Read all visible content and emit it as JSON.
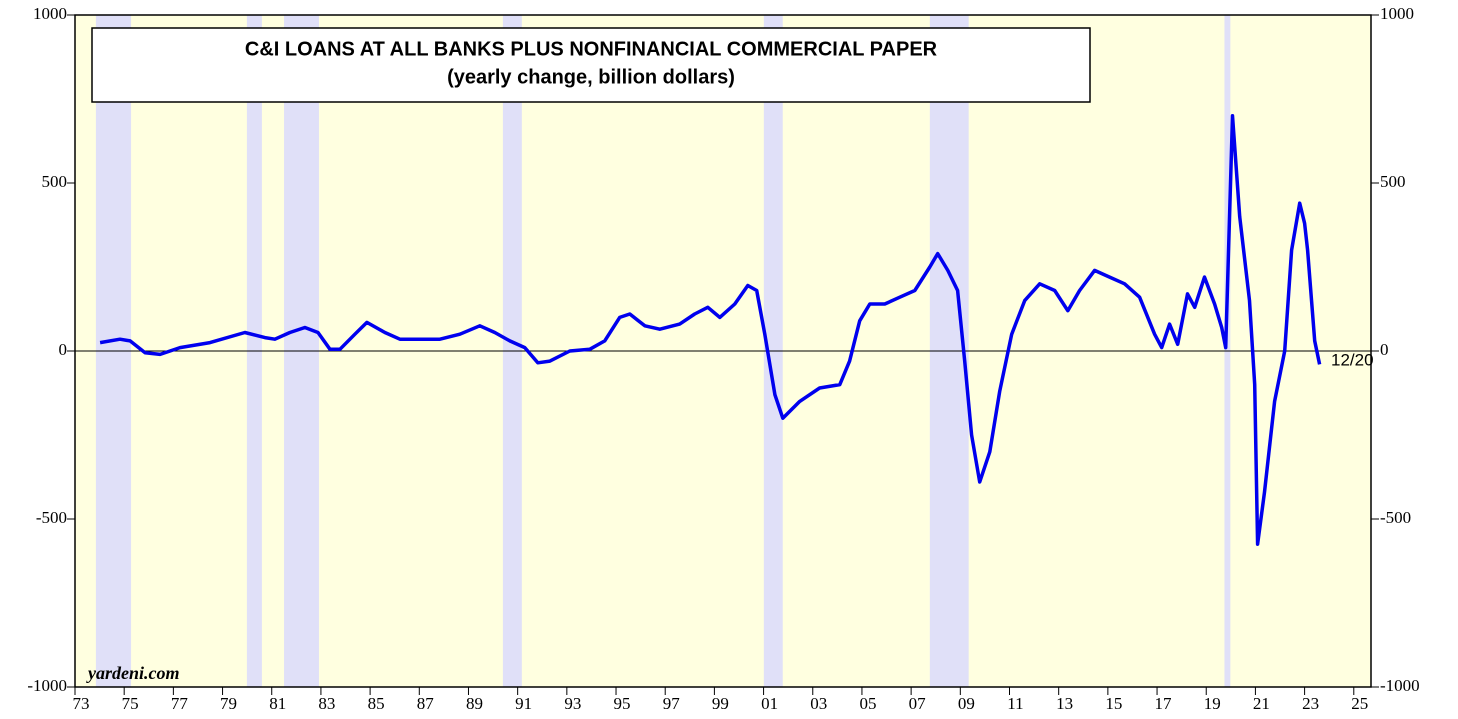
{
  "chart_data": {
    "type": "line",
    "title": "C&I LOANS AT ALL BANKS PLUS NONFINANCIAL COMMERCIAL PAPER",
    "subtitle": "(yearly change, billion dollars)",
    "annotation": "12/20",
    "source": "yardeni.com",
    "xlim": [
      1973,
      2025.7
    ],
    "ylim": [
      -1000,
      1000
    ],
    "yticks": [
      -1000,
      -500,
      0,
      500,
      1000
    ],
    "y2lim": [
      -1000,
      1000
    ],
    "y2ticks": [
      -1000,
      -500,
      0,
      500,
      1000
    ],
    "xticks": [
      {
        "value": 1973,
        "label": "73"
      },
      {
        "value": 1975,
        "label": "75"
      },
      {
        "value": 1977,
        "label": "77"
      },
      {
        "value": 1979,
        "label": "79"
      },
      {
        "value": 1981,
        "label": "81"
      },
      {
        "value": 1983,
        "label": "83"
      },
      {
        "value": 1985,
        "label": "85"
      },
      {
        "value": 1987,
        "label": "87"
      },
      {
        "value": 1989,
        "label": "89"
      },
      {
        "value": 1991,
        "label": "91"
      },
      {
        "value": 1993,
        "label": "93"
      },
      {
        "value": 1995,
        "label": "95"
      },
      {
        "value": 1997,
        "label": "97"
      },
      {
        "value": 1999,
        "label": "99"
      },
      {
        "value": 2001,
        "label": "01"
      },
      {
        "value": 2003,
        "label": "03"
      },
      {
        "value": 2005,
        "label": "05"
      },
      {
        "value": 2007,
        "label": "07"
      },
      {
        "value": 2009,
        "label": "09"
      },
      {
        "value": 2011,
        "label": "11"
      },
      {
        "value": 2013,
        "label": "13"
      },
      {
        "value": 2015,
        "label": "15"
      },
      {
        "value": 2017,
        "label": "17"
      },
      {
        "value": 2019,
        "label": "19"
      },
      {
        "value": 2021,
        "label": "21"
      },
      {
        "value": 2023,
        "label": "23"
      },
      {
        "value": 2025,
        "label": "25"
      }
    ],
    "recessions": [
      [
        1973.85,
        1975.28
      ],
      [
        1979.99,
        1980.6
      ],
      [
        1981.5,
        1982.92
      ],
      [
        1990.4,
        1991.17
      ],
      [
        2001.01,
        2001.78
      ],
      [
        2007.76,
        2009.34
      ],
      [
        2019.74,
        2019.98
      ]
    ],
    "recession_color": "#e0e0f8",
    "background": "#ffffe0",
    "series": [
      {
        "name": "C&I loans plus commercial paper",
        "color": "#0000ee",
        "x": [
          1974.02,
          1974.83,
          1975.24,
          1975.85,
          1976.46,
          1977.27,
          1978.49,
          1979.91,
          1980.72,
          1981.13,
          1981.74,
          1982.35,
          1982.88,
          1983.37,
          1983.77,
          1984.38,
          1984.87,
          1985.6,
          1986.21,
          1987.02,
          1987.84,
          1988.65,
          1989.46,
          1990.07,
          1990.68,
          1991.29,
          1991.82,
          1992.31,
          1993.12,
          1993.93,
          1994.54,
          1995.15,
          1995.56,
          1996.17,
          1996.78,
          1997.59,
          1998.2,
          1998.73,
          1999.22,
          1999.83,
          2000.36,
          2000.72,
          2001.05,
          2001.46,
          2001.78,
          2002.47,
          2003.28,
          2004.1,
          2004.5,
          2004.91,
          2005.32,
          2005.93,
          2006.54,
          2007.15,
          2007.76,
          2008.08,
          2008.49,
          2008.89,
          2009.18,
          2009.46,
          2009.79,
          2010.2,
          2010.6,
          2011.09,
          2011.62,
          2012.23,
          2012.84,
          2013.37,
          2013.85,
          2014.46,
          2015.07,
          2015.68,
          2016.29,
          2016.9,
          2017.19,
          2017.51,
          2017.84,
          2018.24,
          2018.53,
          2018.93,
          2019.34,
          2019.63,
          2019.79,
          2020.07,
          2020.36,
          2020.76,
          2020.97,
          2021.09,
          2021.37,
          2021.78,
          2022.19,
          2022.47,
          2022.8,
          2023.0,
          2023.12,
          2023.41,
          2023.61
        ],
        "values": [
          25,
          35,
          30,
          -5,
          -10,
          10,
          25,
          55,
          40,
          35,
          55,
          70,
          55,
          5,
          5,
          50,
          85,
          55,
          35,
          35,
          35,
          50,
          75,
          55,
          30,
          10,
          -35,
          -30,
          0,
          5,
          30,
          100,
          110,
          75,
          65,
          80,
          110,
          130,
          100,
          140,
          195,
          180,
          50,
          -130,
          -200,
          -150,
          -110,
          -100,
          -30,
          90,
          140,
          140,
          160,
          180,
          250,
          290,
          240,
          180,
          -30,
          -250,
          -390,
          -300,
          -120,
          50,
          150,
          200,
          180,
          120,
          180,
          240,
          220,
          200,
          160,
          50,
          10,
          80,
          20,
          170,
          130,
          220,
          140,
          70,
          10,
          700,
          400,
          150,
          -100,
          -575,
          -420,
          -150,
          0,
          300,
          440,
          380,
          300,
          30,
          -40
        ]
      }
    ]
  }
}
